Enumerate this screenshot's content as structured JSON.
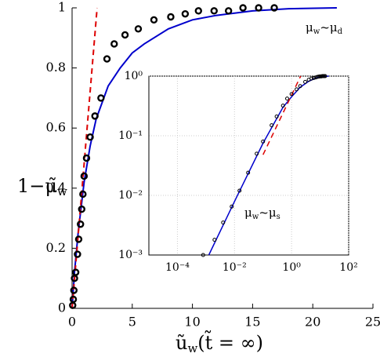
{
  "chart_data": [
    {
      "type": "line",
      "ylabel": [
        "1−μ̃",
        "w"
      ],
      "xlabel": [
        "ũ",
        "w",
        "(t̃ = ∞)"
      ],
      "annotation": [
        "μ",
        "w",
        "~μ",
        "d"
      ],
      "xlim": [
        0,
        25
      ],
      "ylim": [
        0,
        1
      ],
      "xticks": [
        0,
        5,
        10,
        15,
        20,
        25
      ],
      "yticks": [
        0,
        0.2,
        0.4,
        0.6,
        0.8,
        1
      ],
      "series": [
        {
          "color": "#0000cc",
          "line": "solid",
          "x": [
            0,
            0.2,
            0.5,
            1,
            1.5,
            2,
            3,
            4,
            5,
            6,
            8,
            10,
            12,
            15,
            18,
            22
          ],
          "values": [
            0,
            0.12,
            0.25,
            0.42,
            0.54,
            0.63,
            0.74,
            0.8,
            0.85,
            0.88,
            0.93,
            0.96,
            0.975,
            0.99,
            0.997,
            1.0
          ]
        },
        {
          "color": "#dd0000",
          "line": "dashed",
          "x": [
            0,
            2.08
          ],
          "values": [
            0,
            1
          ]
        },
        {
          "color": "#000000",
          "marker": "circle",
          "x": [
            0.05,
            0.1,
            0.15,
            0.2,
            0.3,
            0.45,
            0.55,
            0.7,
            0.8,
            0.9,
            1.0,
            1.2,
            1.5,
            1.9,
            2.4,
            2.9,
            3.5,
            4.4,
            5.5,
            6.8,
            8.2,
            9.4,
            10.5,
            11.8,
            13.0,
            14.2,
            15.5,
            16.8
          ],
          "values": [
            0.01,
            0.03,
            0.06,
            0.1,
            0.12,
            0.18,
            0.23,
            0.28,
            0.33,
            0.38,
            0.44,
            0.5,
            0.57,
            0.64,
            0.7,
            0.83,
            0.88,
            0.91,
            0.93,
            0.96,
            0.97,
            0.98,
            0.99,
            0.99,
            0.99,
            1.0,
            1.0,
            1.0
          ]
        }
      ]
    },
    {
      "type": "line",
      "log_scale": true,
      "grid": true,
      "annotation": [
        "μ",
        "w",
        "~μ",
        "s"
      ],
      "xlim": [
        1e-05,
        100
      ],
      "ylim": [
        0.001,
        1
      ],
      "xticks": [
        {
          "value": 0.0001,
          "label": "10⁻⁴"
        },
        {
          "value": 0.01,
          "label": "10⁻²"
        },
        {
          "value": 1,
          "label": "10⁰"
        },
        {
          "value": 100,
          "label": "10²"
        }
      ],
      "yticks": [
        {
          "value": 0.001,
          "label": "10⁻³"
        },
        {
          "value": 0.01,
          "label": "10⁻²"
        },
        {
          "value": 0.1,
          "label": "10⁻¹"
        },
        {
          "value": 1,
          "label": "10⁰"
        }
      ],
      "series": [
        {
          "color": "#0000cc",
          "line": "solid",
          "x": [
            0.00126,
            0.01,
            0.1,
            0.5,
            1,
            2,
            4,
            8,
            15,
            20
          ],
          "values": [
            0.001,
            0.0079,
            0.075,
            0.3,
            0.45,
            0.65,
            0.82,
            0.95,
            0.99,
            1.0
          ]
        },
        {
          "color": "#dd0000",
          "line": "dashed",
          "x": [
            0.1,
            2.08
          ],
          "values": [
            0.048,
            1
          ]
        },
        {
          "color": "#000000",
          "marker": "circle",
          "x": [
            0.0008,
            0.002,
            0.004,
            0.008,
            0.015,
            0.03,
            0.06,
            0.1,
            0.2,
            0.3,
            0.5,
            0.7,
            1,
            1.5,
            2,
            3,
            4,
            5,
            6,
            7,
            8,
            9,
            10,
            11,
            12,
            13,
            14,
            15
          ],
          "values": [
            0.001,
            0.0018,
            0.0035,
            0.0065,
            0.012,
            0.024,
            0.05,
            0.08,
            0.15,
            0.21,
            0.32,
            0.42,
            0.5,
            0.6,
            0.68,
            0.8,
            0.87,
            0.91,
            0.93,
            0.95,
            0.97,
            0.98,
            0.99,
            0.99,
            1,
            1,
            1,
            1
          ]
        }
      ]
    }
  ]
}
